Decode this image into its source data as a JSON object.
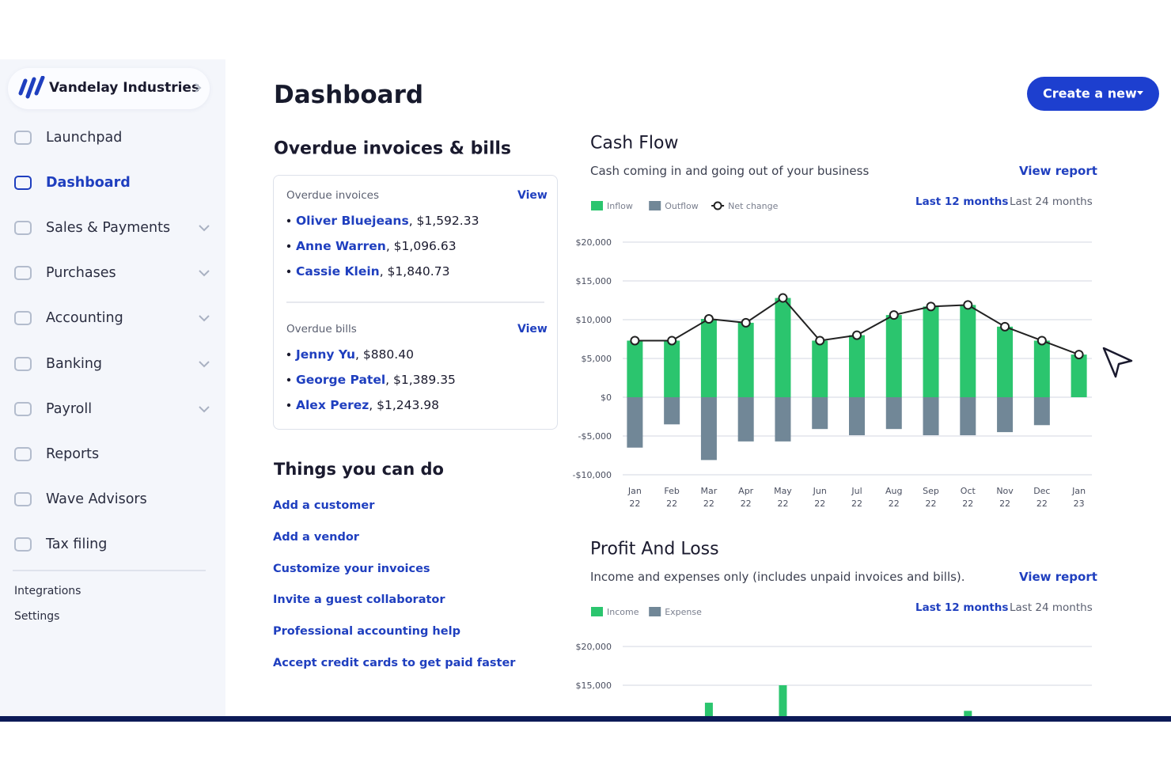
{
  "sidebar": {
    "brand": "Vandelay Industries",
    "nav": [
      {
        "label": "Launchpad"
      },
      {
        "label": "Dashboard",
        "active": true
      },
      {
        "label": "Sales & Payments",
        "expandable": true
      },
      {
        "label": "Purchases",
        "expandable": true
      },
      {
        "label": "Accounting",
        "expandable": true
      },
      {
        "label": "Banking",
        "expandable": true
      },
      {
        "label": "Payroll",
        "expandable": true
      },
      {
        "label": "Reports"
      },
      {
        "label": "Wave Advisors"
      },
      {
        "label": "Tax filing"
      }
    ],
    "footer": [
      "Integrations",
      "Settings"
    ]
  },
  "header": {
    "title": "Dashboard",
    "button": "Create a new"
  },
  "overdue": {
    "title": "Overdue invoices & bills",
    "invoices": {
      "label": "Overdue invoices",
      "action": "View",
      "items": [
        {
          "name": "Oliver Bluejeans",
          "amount": ", $1,592.33"
        },
        {
          "name": "Anne Warren",
          "amount": ", $1,096.63"
        },
        {
          "name": "Cassie Klein",
          "amount": ", $1,840.73"
        }
      ]
    },
    "bills": {
      "label": "Overdue bills",
      "action": "View",
      "items": [
        {
          "name": "Jenny Yu",
          "amount": ", $880.40"
        },
        {
          "name": "George Patel",
          "amount": ", $1,389.35"
        },
        {
          "name": "Alex Perez",
          "amount": ", $1,243.98"
        }
      ]
    }
  },
  "things": {
    "title": "Things you can do",
    "links": [
      "Add a customer",
      "Add a vendor",
      "Customize your invoices",
      "Invite a guest collaborator",
      "Professional accounting help",
      "Accept credit cards to get paid faster"
    ]
  },
  "chart_data": [
    {
      "type": "bar",
      "title": "Cash Flow",
      "subtitle": "Cash coming in and going out of your business",
      "link": "View report",
      "ranges": [
        "Last 12 months",
        "Last 24 months"
      ],
      "categories": [
        "Jan 22",
        "Feb 22",
        "Mar 22",
        "Apr 22",
        "May 22",
        "Jun 22",
        "Jul 22",
        "Aug 22",
        "Sep 22",
        "Oct 22",
        "Nov 22",
        "Dec 22",
        "Jan 23"
      ],
      "series": [
        {
          "name": "Inflow",
          "color": "#2bc56e",
          "values": [
            7300,
            7300,
            10100,
            9600,
            12800,
            7300,
            8000,
            10600,
            11700,
            11900,
            9100,
            7300,
            5500
          ]
        },
        {
          "name": "Outflow",
          "color": "#718797",
          "values": [
            -6500,
            -3500,
            -8100,
            -5700,
            -5700,
            -4100,
            -4900,
            -4100,
            -4900,
            -4900,
            -4500,
            -3600,
            0
          ]
        },
        {
          "name": "Net change",
          "color": "#222222",
          "type": "line",
          "values": [
            7300,
            7300,
            10100,
            9600,
            12800,
            7300,
            8000,
            10600,
            11700,
            11900,
            9100,
            7300,
            5500
          ]
        }
      ],
      "ylim": [
        -10000,
        20000
      ],
      "yticks": [
        {
          "value": -10000,
          "label": "-$10,000"
        },
        {
          "value": -5000,
          "label": "-$5,000"
        },
        {
          "value": 0,
          "label": "$0"
        },
        {
          "value": 5000,
          "label": "$5,000"
        },
        {
          "value": 10000,
          "label": "$10,000"
        },
        {
          "value": 15000,
          "label": "$15,000"
        },
        {
          "value": 20000,
          "label": "$20,000"
        }
      ],
      "grid": true
    },
    {
      "type": "bar",
      "title": "Profit And Loss",
      "subtitle": "Income and expenses only (includes unpaid invoices and bills).",
      "link": "View report",
      "ranges": [
        "Last 12 months",
        "Last 24 months"
      ],
      "series": [
        {
          "name": "Income",
          "color": "#2bc56e",
          "values": [
            null,
            null,
            12750,
            null,
            15000,
            null,
            null,
            null,
            null,
            11700,
            null,
            null,
            null
          ]
        },
        {
          "name": "Expense",
          "color": "#718797",
          "values": [
            null,
            null,
            null,
            null,
            null,
            null,
            null,
            null,
            null,
            null,
            null,
            null,
            null
          ]
        }
      ],
      "ylim": [
        0,
        20000
      ],
      "yticks": [
        {
          "value": 15000,
          "label": "$15,000"
        },
        {
          "value": 20000,
          "label": "$20,000"
        }
      ],
      "grid": true
    }
  ]
}
